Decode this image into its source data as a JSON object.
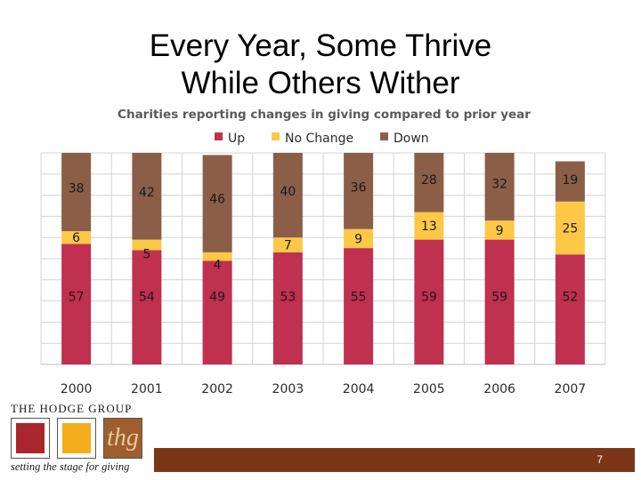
{
  "slide": {
    "title_line_1": "Every Year, Some Thrive",
    "title_line_2": "While  Others Wither",
    "page_number": "7"
  },
  "logo": {
    "name": "THE HODGE GROUP",
    "mark": "thg",
    "tagline": "setting the stage for giving"
  },
  "colors": {
    "up": "#c0304f",
    "no_change": "#fcc846",
    "down": "#8b5e48",
    "footer": "#7a3516"
  },
  "chart_data": {
    "type": "bar",
    "stacked": true,
    "title": "Charities reporting changes in giving compared to prior year",
    "categories": [
      "2000",
      "2001",
      "2002",
      "2003",
      "2004",
      "2005",
      "2006",
      "2007"
    ],
    "series": [
      {
        "name": "Up",
        "values": [
          57,
          54,
          49,
          53,
          55,
          59,
          59,
          52
        ]
      },
      {
        "name": "No Change",
        "values": [
          6,
          5,
          4,
          7,
          9,
          13,
          9,
          25
        ]
      },
      {
        "name": "Down",
        "values": [
          38,
          42,
          46,
          40,
          36,
          28,
          32,
          19
        ]
      }
    ],
    "ylim": [
      0,
      100
    ],
    "legend_position": "top",
    "grid": true,
    "xlabel": "",
    "ylabel": ""
  }
}
